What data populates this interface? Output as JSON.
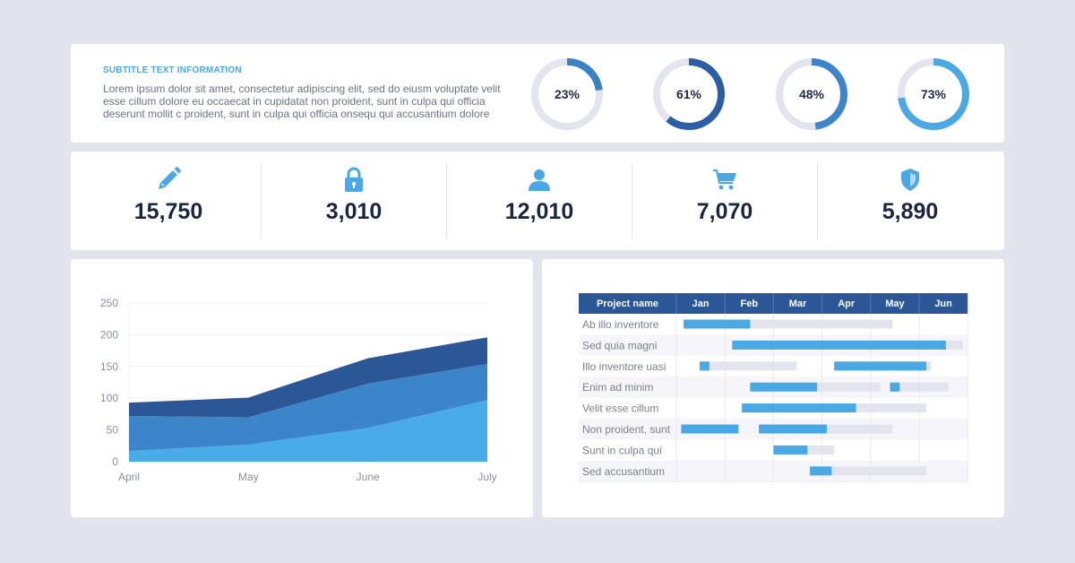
{
  "info": {
    "subtitle": "SUBTITLE TEXT INFORMATION",
    "description": "Lorem ipsum dolor sit amet, consectetur adipiscing elit, sed do eiusm voluptate velit esse cillum dolore eu occaecat in cupidatat non proident, sunt in culpa qui officia deserunt mollit c proident, sunt in culpa qui officia onsequ qui accusantium dolore"
  },
  "donuts": [
    {
      "label": "23%",
      "value": 23,
      "color": "#3b82c4"
    },
    {
      "label": "61%",
      "value": 61,
      "color": "#2b5ea5"
    },
    {
      "label": "48%",
      "value": 48,
      "color": "#3d85c9"
    },
    {
      "label": "73%",
      "value": 73,
      "color": "#4aa8e4"
    }
  ],
  "stats": [
    {
      "icon": "pencil-icon",
      "value": "15,750"
    },
    {
      "icon": "lock-icon",
      "value": "3,010"
    },
    {
      "icon": "user-icon",
      "value": "12,010"
    },
    {
      "icon": "cart-icon",
      "value": "7,070"
    },
    {
      "icon": "shield-icon",
      "value": "5,890"
    }
  ],
  "colors": {
    "accent": "#4aa8e4",
    "dark": "#2b5797",
    "mid": "#3d85c9",
    "track": "#e4e4ee"
  },
  "chart_data": [
    {
      "type": "area",
      "stacked": true,
      "categories": [
        "April",
        "May",
        "June",
        "July"
      ],
      "series": [
        {
          "values": [
            17,
            27,
            53,
            97
          ],
          "color": "#4aace6"
        },
        {
          "values": [
            55,
            43,
            70,
            57
          ],
          "color": "#3d85c9"
        },
        {
          "values": [
            21,
            31,
            40,
            42
          ],
          "color": "#2b5797"
        }
      ],
      "yticks": [
        0,
        50,
        100,
        150,
        200,
        250
      ],
      "ylim": [
        0,
        250
      ],
      "grid": true
    },
    {
      "type": "gantt",
      "header": "Project name",
      "months": [
        "Jan",
        "Feb",
        "Mar",
        "Apr",
        "May",
        "Jun"
      ],
      "tasks": [
        {
          "name": "Ab illo inventore",
          "bars": [
            {
              "start": 0.15,
              "done": 1.52,
              "end": 4.45
            }
          ]
        },
        {
          "name": "Sed quia magni",
          "bars": [
            {
              "start": 1.15,
              "done": 5.55,
              "end": 5.9
            }
          ]
        },
        {
          "name": "Illo inventore uasi",
          "bars": [
            {
              "start": 0.48,
              "done": 0.68,
              "end": 2.48
            },
            {
              "start": 3.25,
              "done": 5.15,
              "end": 5.25
            }
          ]
        },
        {
          "name": "Enim ad minim",
          "bars": [
            {
              "start": 1.52,
              "done": 2.9,
              "end": 4.2
            },
            {
              "start": 4.4,
              "done": 4.6,
              "end": 5.6
            }
          ]
        },
        {
          "name": "Velit esse cillum",
          "bars": [
            {
              "start": 1.35,
              "done": 3.7,
              "end": 5.15
            }
          ]
        },
        {
          "name": "Non proident, sunt",
          "bars": [
            {
              "start": 0.1,
              "done": 1.28,
              "end": 1.28
            },
            {
              "start": 1.7,
              "done": 3.1,
              "end": 4.45
            }
          ]
        },
        {
          "name": "Sunt in culpa qui",
          "bars": [
            {
              "start": 2.0,
              "done": 2.7,
              "end": 3.25
            }
          ]
        },
        {
          "name": "Sed accusantium",
          "bars": [
            {
              "start": 2.75,
              "done": 3.2,
              "end": 5.15
            }
          ]
        }
      ]
    }
  ]
}
